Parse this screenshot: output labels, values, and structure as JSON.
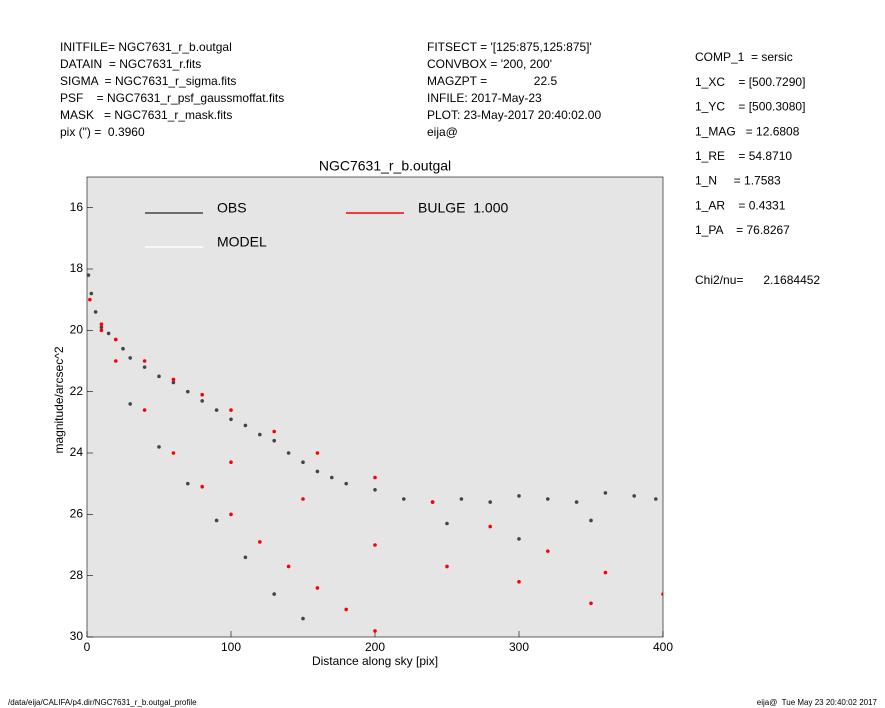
{
  "header": {
    "left": [
      "INITFILE= NGC7631_r_b.outgal",
      "DATAIN  = NGC7631_r.fits",
      "SIGMA  = NGC7631_r_sigma.fits",
      "PSF    = NGC7631_r_psf_gaussmoffat.fits",
      "MASK   = NGC7631_r_mask.fits",
      "pix (\") =  0.3960"
    ],
    "middle": [
      "FITSECT = '[125:875,125:875]'",
      "CONVBOX = '200, 200'",
      "MAGZPT =              22.5",
      "INFILE: 2017-May-23",
      "PLOT: 23-May-2017 20:40:02.00",
      "eija@"
    ],
    "right": [
      "COMP_1  = sersic",
      "1_XC    = [500.7290]",
      "1_YC    = [500.3080]",
      "1_MAG   = 12.6808",
      "1_RE    = 54.8710",
      "1_N     = 1.7583",
      "1_AR    = 0.4331",
      "1_PA    = 76.8267"
    ],
    "chi2": "Chi2/nu=      2.1684452"
  },
  "footer": {
    "left": "/data/eija/CALIFA/p4.dir/NGC7631_r_b.outgal_profile",
    "right": "eija@  Tue May 23 20:40:02 2017"
  },
  "chart_data": {
    "type": "scatter",
    "title": "NGC7631_r_b.outgal",
    "x_label": "Distance along sky [pix]",
    "y_label": "magnitude/arcsec^2",
    "xlim": [
      0,
      400
    ],
    "xticks": [
      0,
      100,
      200,
      300,
      400
    ],
    "ylim": [
      30,
      15
    ],
    "yticks": [
      16,
      18,
      20,
      22,
      24,
      26,
      28,
      30
    ],
    "series": [
      {
        "name": "OBS",
        "color": "#444444",
        "x": [
          1,
          3,
          6,
          10,
          15,
          20,
          25,
          30,
          40,
          50,
          60,
          70,
          80,
          90,
          100,
          110,
          120,
          130,
          140,
          150,
          160,
          170,
          180,
          200,
          220,
          240,
          260,
          280,
          300,
          320,
          340,
          360,
          380,
          395,
          30,
          50,
          70,
          90,
          110,
          130,
          150,
          250,
          300,
          350
        ],
        "y": [
          18.2,
          18.8,
          19.4,
          19.9,
          20.1,
          20.3,
          20.6,
          20.9,
          21.2,
          21.5,
          21.7,
          22.0,
          22.3,
          22.6,
          22.9,
          23.1,
          23.4,
          23.6,
          24.0,
          24.3,
          24.6,
          24.8,
          25.0,
          25.2,
          25.5,
          25.6,
          25.5,
          25.6,
          25.4,
          25.5,
          25.6,
          25.3,
          25.4,
          25.5,
          22.4,
          23.8,
          25.0,
          26.2,
          27.4,
          28.6,
          29.4,
          26.3,
          26.8,
          26.2
        ]
      },
      {
        "name": "MODEL",
        "color": "#ffffff",
        "x": [],
        "y": []
      },
      {
        "name": "BULGE  1.000",
        "color": "#ff0000",
        "x": [
          2,
          10,
          20,
          40,
          60,
          80,
          100,
          130,
          160,
          200,
          240,
          280,
          320,
          360,
          400,
          10,
          20,
          40,
          60,
          80,
          100,
          120,
          140,
          160,
          180,
          200,
          100,
          150,
          200,
          250,
          300,
          350
        ],
        "y": [
          19.0,
          19.8,
          20.3,
          21.0,
          21.6,
          22.1,
          22.6,
          23.3,
          24.0,
          24.8,
          25.6,
          26.4,
          27.2,
          27.9,
          28.6,
          20.0,
          21.0,
          22.6,
          24.0,
          25.1,
          26.0,
          26.9,
          27.7,
          28.4,
          29.1,
          29.8,
          24.3,
          25.5,
          27.0,
          27.7,
          28.2,
          28.9
        ]
      }
    ]
  }
}
